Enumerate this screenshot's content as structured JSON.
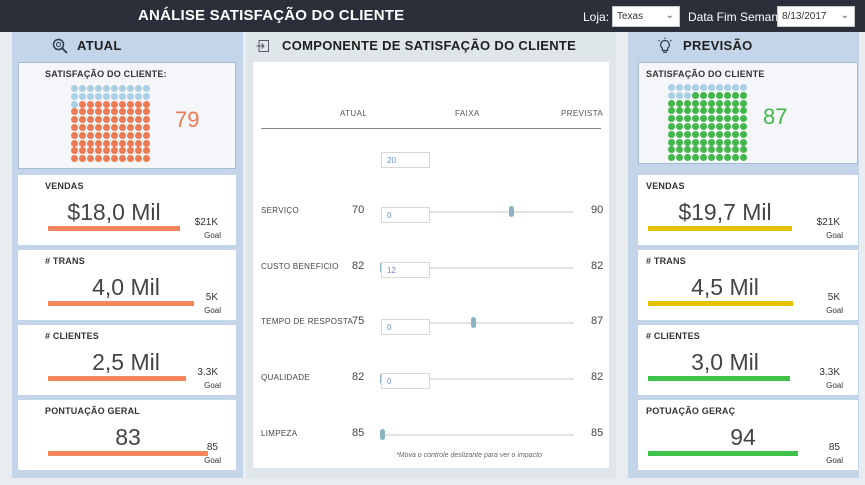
{
  "header": {
    "title": "ANÁLISE SATISFAÇÃO DO CLIENTE",
    "filters": [
      {
        "label": "Loja:",
        "value": "Texas"
      },
      {
        "label": "Data Fim Semana:",
        "value": "8/13/2017"
      }
    ]
  },
  "atual": {
    "heading": "ATUAL",
    "icon": "zoom-icon",
    "satisfaction": {
      "title": "SATISFAÇÃO DO CLIENTE:",
      "value": "79",
      "color": "#ef7a52",
      "filled_dots": 79,
      "empty_color": "#a9d0e5"
    },
    "metrics": [
      {
        "title": "VENDAS",
        "value": "$18,0 Mil",
        "goal": "$21K",
        "goal_label": "Goal",
        "progress": 0.857,
        "color": "#f4845c"
      },
      {
        "title": "# TRANS",
        "value": "4,0 Mil",
        "goal": "5K",
        "goal_label": "Goal",
        "progress": 0.8,
        "color": "#f4845c"
      },
      {
        "title": "# CLIENTES",
        "value": "2,5 Mil",
        "goal": "3.3K",
        "goal_label": "Goal",
        "progress": 0.76,
        "color": "#f4845c"
      },
      {
        "title": "PONTUAÇÃO GERAL",
        "value": "83",
        "goal": "85",
        "goal_label": "Goal",
        "progress": 0.976,
        "color": "#f4845c"
      }
    ]
  },
  "componente": {
    "heading": "COMPONENTE DE SATISFAÇÃO DO CLIENTE",
    "icon": "enter-icon",
    "columns": [
      "ATUAL",
      "FAIXA",
      "PREVISTA"
    ],
    "rows": [
      {
        "label": "SERVIÇO",
        "atual": "70",
        "slider": "20",
        "prevista": "90",
        "position": 0.67
      },
      {
        "label": "CUSTO BENEFICIO",
        "atual": "82",
        "slider": "0",
        "prevista": "82",
        "position": 0.0
      },
      {
        "label": "TEMPO DE RESPOSTA",
        "atual": "75",
        "slider": "12",
        "prevista": "87",
        "position": 0.47
      },
      {
        "label": "QUALIDADE",
        "atual": "82",
        "slider": "0",
        "prevista": "82",
        "position": 0.0
      },
      {
        "label": "LIMPEZA",
        "atual": "85",
        "slider": "0",
        "prevista": "85",
        "position": 0.0
      }
    ],
    "footnote": "*Mova o controle deslizante para ver o impacto"
  },
  "previsao": {
    "heading": "PREVISÃO",
    "icon": "lightbulb-icon",
    "satisfaction": {
      "title": "SATISFAÇÃO DO CLIENTE",
      "value": "87",
      "color": "#43b649",
      "filled_dots": 87,
      "empty_color": "#a9d0e5"
    },
    "metrics": [
      {
        "title": "VENDAS",
        "value": "$19,7 Mil",
        "goal": "$21K",
        "goal_label": "Goal",
        "progress": 0.938,
        "color": "#e5c100"
      },
      {
        "title": "# TRANS",
        "value": "4,5 Mil",
        "goal": "5K",
        "goal_label": "Goal",
        "progress": 0.9,
        "color": "#e5c100"
      },
      {
        "title": "# CLIENTES",
        "value": "3,0 Mil",
        "goal": "3.3K",
        "goal_label": "Goal",
        "progress": 0.909,
        "color": "#3ec24a"
      },
      {
        "title": "POTUAÇÃO GERAÇ",
        "value": "94",
        "goal": "85",
        "goal_label": "Goal",
        "progress": 1.0,
        "color": "#3ec24a"
      }
    ]
  }
}
